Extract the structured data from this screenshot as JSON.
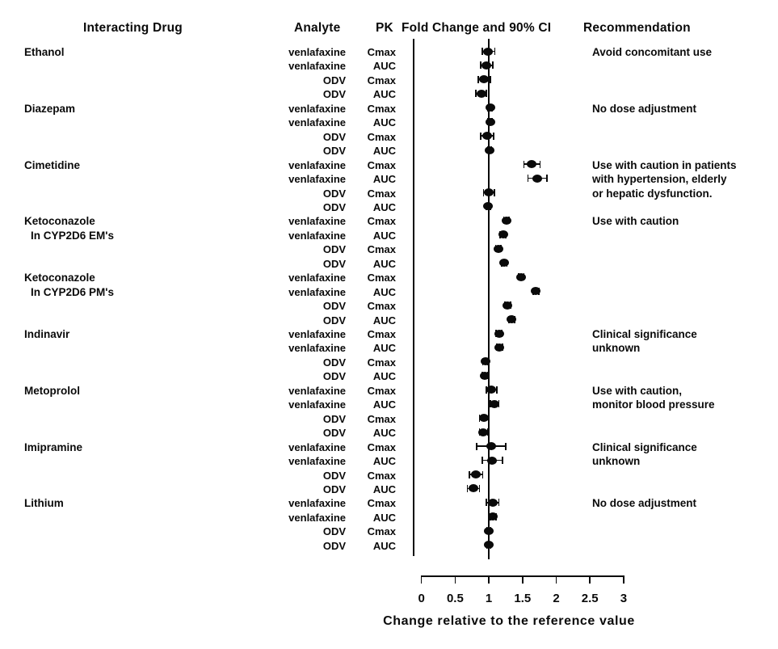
{
  "figure": {
    "columns": {
      "interacting_drug": "Interacting Drug",
      "analyte": "Analyte",
      "pk": "PK",
      "fold_change": "Fold Change and 90% CI",
      "recommendation": "Recommendation"
    }
  },
  "chart_data": {
    "type": "scatter",
    "subtype": "forest-plot",
    "title": "PK Fold Change and 90% CI",
    "xlabel": "Change relative to the reference value",
    "x_tick_labels": [
      "0",
      "0.5",
      "1",
      "1.5",
      "2",
      "2.5",
      "3"
    ],
    "x_tick_values": [
      0,
      0.5,
      1,
      1.5,
      2,
      2.5,
      3
    ],
    "xlim": [
      0,
      3
    ],
    "reference_line": 1.0,
    "marker_color": "#0a0a0a",
    "groups": [
      {
        "drug": [
          "Ethanol"
        ],
        "recommendation": [
          "Avoid concomitant use"
        ],
        "rows": [
          {
            "analyte": "venlafaxine",
            "parameter": "Cmax",
            "value": 0.99,
            "ci_low": 0.9,
            "ci_high": 1.09
          },
          {
            "analyte": "venlafaxine",
            "parameter": "AUC",
            "value": 0.96,
            "ci_low": 0.88,
            "ci_high": 1.06
          },
          {
            "analyte": "ODV",
            "parameter": "Cmax",
            "value": 0.93,
            "ci_low": 0.84,
            "ci_high": 1.02
          },
          {
            "analyte": "ODV",
            "parameter": "AUC",
            "value": 0.89,
            "ci_low": 0.81,
            "ci_high": 0.96
          }
        ]
      },
      {
        "drug": [
          "Diazepam"
        ],
        "recommendation": [
          "No dose adjustment"
        ],
        "rows": [
          {
            "analyte": "venlafaxine",
            "parameter": "Cmax",
            "value": 1.02,
            "ci_low": 0.99,
            "ci_high": 1.05
          },
          {
            "analyte": "venlafaxine",
            "parameter": "AUC",
            "value": 1.02,
            "ci_low": 0.99,
            "ci_high": 1.05
          },
          {
            "analyte": "ODV",
            "parameter": "Cmax",
            "value": 0.97,
            "ci_low": 0.88,
            "ci_high": 1.07
          },
          {
            "analyte": "ODV",
            "parameter": "AUC",
            "value": 1.01,
            "ci_low": 0.98,
            "ci_high": 1.04
          }
        ]
      },
      {
        "drug": [
          "Cimetidine"
        ],
        "recommendation": [
          "Use with caution in patients",
          "with hypertension, elderly",
          "or hepatic dysfunction."
        ],
        "rows": [
          {
            "analyte": "venlafaxine",
            "parameter": "Cmax",
            "value": 1.64,
            "ci_low": 1.52,
            "ci_high": 1.76
          },
          {
            "analyte": "venlafaxine",
            "parameter": "AUC",
            "value": 1.72,
            "ci_low": 1.58,
            "ci_high": 1.86
          },
          {
            "analyte": "ODV",
            "parameter": "Cmax",
            "value": 1.0,
            "ci_low": 0.92,
            "ci_high": 1.08
          },
          {
            "analyte": "ODV",
            "parameter": "AUC",
            "value": 0.99,
            "ci_low": 0.96,
            "ci_high": 1.02
          }
        ]
      },
      {
        "drug": [
          "Ketoconazole",
          "In CYP2D6 EM's"
        ],
        "recommendation": [
          "Use with caution"
        ],
        "rows": [
          {
            "analyte": "venlafaxine",
            "parameter": "Cmax",
            "value": 1.26,
            "ci_low": 1.22,
            "ci_high": 1.3
          },
          {
            "analyte": "venlafaxine",
            "parameter": "AUC",
            "value": 1.21,
            "ci_low": 1.17,
            "ci_high": 1.25
          },
          {
            "analyte": "ODV",
            "parameter": "Cmax",
            "value": 1.14,
            "ci_low": 1.1,
            "ci_high": 1.18
          },
          {
            "analyte": "ODV",
            "parameter": "AUC",
            "value": 1.23,
            "ci_low": 1.19,
            "ci_high": 1.27
          }
        ]
      },
      {
        "drug": [
          "Ketoconazole",
          "In CYP2D6 PM's"
        ],
        "recommendation": [],
        "rows": [
          {
            "analyte": "venlafaxine",
            "parameter": "Cmax",
            "value": 1.48,
            "ci_low": 1.44,
            "ci_high": 1.52
          },
          {
            "analyte": "venlafaxine",
            "parameter": "AUC",
            "value": 1.7,
            "ci_low": 1.66,
            "ci_high": 1.74
          },
          {
            "analyte": "ODV",
            "parameter": "Cmax",
            "value": 1.28,
            "ci_low": 1.24,
            "ci_high": 1.32
          },
          {
            "analyte": "ODV",
            "parameter": "AUC",
            "value": 1.34,
            "ci_low": 1.3,
            "ci_high": 1.38
          }
        ]
      },
      {
        "drug": [
          "Indinavir"
        ],
        "recommendation": [
          "Clinical significance",
          "unknown"
        ],
        "rows": [
          {
            "analyte": "venlafaxine",
            "parameter": "Cmax",
            "value": 1.15,
            "ci_low": 1.11,
            "ci_high": 1.19
          },
          {
            "analyte": "venlafaxine",
            "parameter": "AUC",
            "value": 1.16,
            "ci_low": 1.12,
            "ci_high": 1.2
          },
          {
            "analyte": "ODV",
            "parameter": "Cmax",
            "value": 0.95,
            "ci_low": 0.91,
            "ci_high": 0.99
          },
          {
            "analyte": "ODV",
            "parameter": "AUC",
            "value": 0.94,
            "ci_low": 0.9,
            "ci_high": 0.98
          }
        ]
      },
      {
        "drug": [
          "Metoprolol"
        ],
        "recommendation": [
          "Use with caution,",
          "monitor blood pressure"
        ],
        "rows": [
          {
            "analyte": "venlafaxine",
            "parameter": "Cmax",
            "value": 1.04,
            "ci_low": 0.96,
            "ci_high": 1.12
          },
          {
            "analyte": "venlafaxine",
            "parameter": "AUC",
            "value": 1.08,
            "ci_low": 1.02,
            "ci_high": 1.15
          },
          {
            "analyte": "ODV",
            "parameter": "Cmax",
            "value": 0.93,
            "ci_low": 0.86,
            "ci_high": 1.0
          },
          {
            "analyte": "ODV",
            "parameter": "AUC",
            "value": 0.92,
            "ci_low": 0.86,
            "ci_high": 0.98
          }
        ]
      },
      {
        "drug": [
          "Imipramine"
        ],
        "recommendation": [
          "Clinical significance",
          "unknown"
        ],
        "rows": [
          {
            "analyte": "venlafaxine",
            "parameter": "Cmax",
            "value": 1.04,
            "ci_low": 0.82,
            "ci_high": 1.25
          },
          {
            "analyte": "venlafaxine",
            "parameter": "AUC",
            "value": 1.05,
            "ci_low": 0.9,
            "ci_high": 1.2
          },
          {
            "analyte": "ODV",
            "parameter": "Cmax",
            "value": 0.81,
            "ci_low": 0.71,
            "ci_high": 0.91
          },
          {
            "analyte": "ODV",
            "parameter": "AUC",
            "value": 0.77,
            "ci_low": 0.68,
            "ci_high": 0.86
          }
        ]
      },
      {
        "drug": [
          "Lithium"
        ],
        "recommendation": [
          "No dose adjustment"
        ],
        "rows": [
          {
            "analyte": "venlafaxine",
            "parameter": "Cmax",
            "value": 1.06,
            "ci_low": 0.96,
            "ci_high": 1.15
          },
          {
            "analyte": "venlafaxine",
            "parameter": "AUC",
            "value": 1.06,
            "ci_low": 1.02,
            "ci_high": 1.11
          },
          {
            "analyte": "ODV",
            "parameter": "Cmax",
            "value": 1.0,
            "ci_low": 0.97,
            "ci_high": 1.03
          },
          {
            "analyte": "ODV",
            "parameter": "AUC",
            "value": 1.0,
            "ci_low": 0.97,
            "ci_high": 1.03
          }
        ]
      }
    ]
  }
}
